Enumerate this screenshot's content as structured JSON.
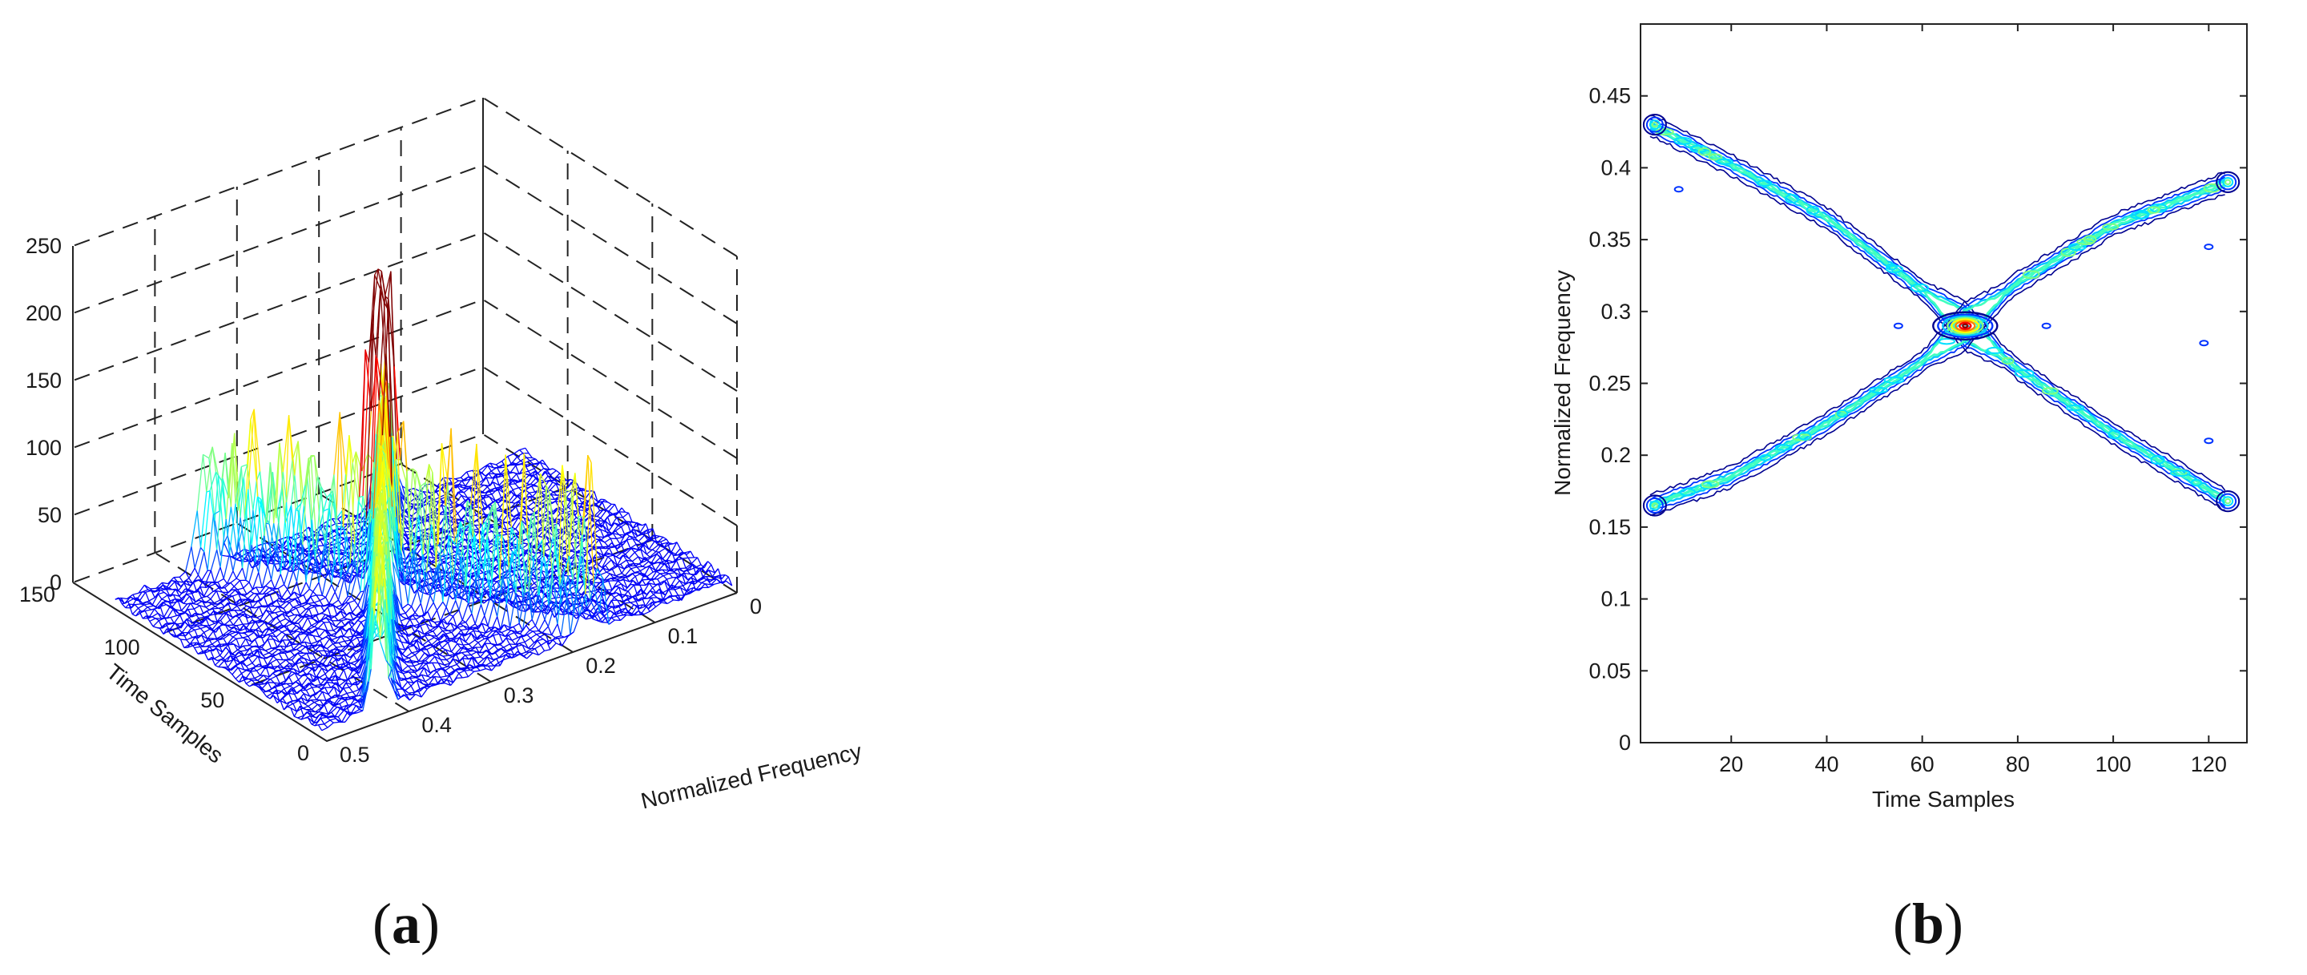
{
  "captions": {
    "a": "(a)",
    "b": "(b)"
  },
  "chart_data": [
    {
      "id": "a",
      "type": "surface",
      "xlabel": "Normalized Frequency",
      "ylabel": "Time Samples",
      "zlabel": "",
      "x_ticks": [
        "0",
        "0.1",
        "0.2",
        "0.3",
        "0.4",
        "0.5"
      ],
      "y_ticks": [
        "0",
        "50",
        "100",
        "150"
      ],
      "z_ticks": [
        "0",
        "50",
        "100",
        "150",
        "200",
        "250"
      ],
      "xlim": [
        0,
        0.5
      ],
      "ylim": [
        0,
        150
      ],
      "zlim": [
        0,
        250
      ],
      "grid": true,
      "colormap": "jet",
      "peaks": [
        {
          "frequency": 0.29,
          "time_start": 60,
          "time_end": 80,
          "max_value": 230
        },
        {
          "frequency": 0.43,
          "time_start": 5,
          "time_end": 25,
          "max_value": 130
        },
        {
          "frequency": 0.17,
          "time_start": 5,
          "time_end": 25,
          "max_value": 110
        },
        {
          "frequency": 0.4,
          "time_start": 105,
          "time_end": 125,
          "max_value": 100
        },
        {
          "frequency": 0.18,
          "time_start": 105,
          "time_end": 125,
          "max_value": 100
        }
      ]
    },
    {
      "id": "b",
      "type": "contour",
      "xlabel": "Time Samples",
      "ylabel": "Normalized Frequency",
      "x_ticks": [
        "20",
        "40",
        "60",
        "80",
        "100",
        "120"
      ],
      "y_ticks": [
        "0",
        "0.05",
        "0.1",
        "0.15",
        "0.2",
        "0.25",
        "0.3",
        "0.35",
        "0.4",
        "0.45"
      ],
      "xlim": [
        1,
        128
      ],
      "ylim": [
        0,
        0.5
      ],
      "grid": false,
      "colormap": "jet",
      "series": [
        {
          "x": [
            3,
            20,
            40,
            60,
            69,
            80,
            100,
            124
          ],
          "y": [
            0.43,
            0.402,
            0.365,
            0.315,
            0.29,
            0.26,
            0.215,
            0.168
          ]
        },
        {
          "x": [
            3,
            20,
            40,
            60,
            69,
            80,
            100,
            124
          ],
          "y": [
            0.165,
            0.185,
            0.222,
            0.265,
            0.29,
            0.32,
            0.36,
            0.39
          ]
        }
      ],
      "outliers": [
        {
          "x": 55,
          "y": 0.29
        },
        {
          "x": 86,
          "y": 0.29
        },
        {
          "x": 119,
          "y": 0.278
        },
        {
          "x": 120,
          "y": 0.21
        },
        {
          "x": 120,
          "y": 0.345
        },
        {
          "x": 9,
          "y": 0.385
        }
      ]
    }
  ]
}
